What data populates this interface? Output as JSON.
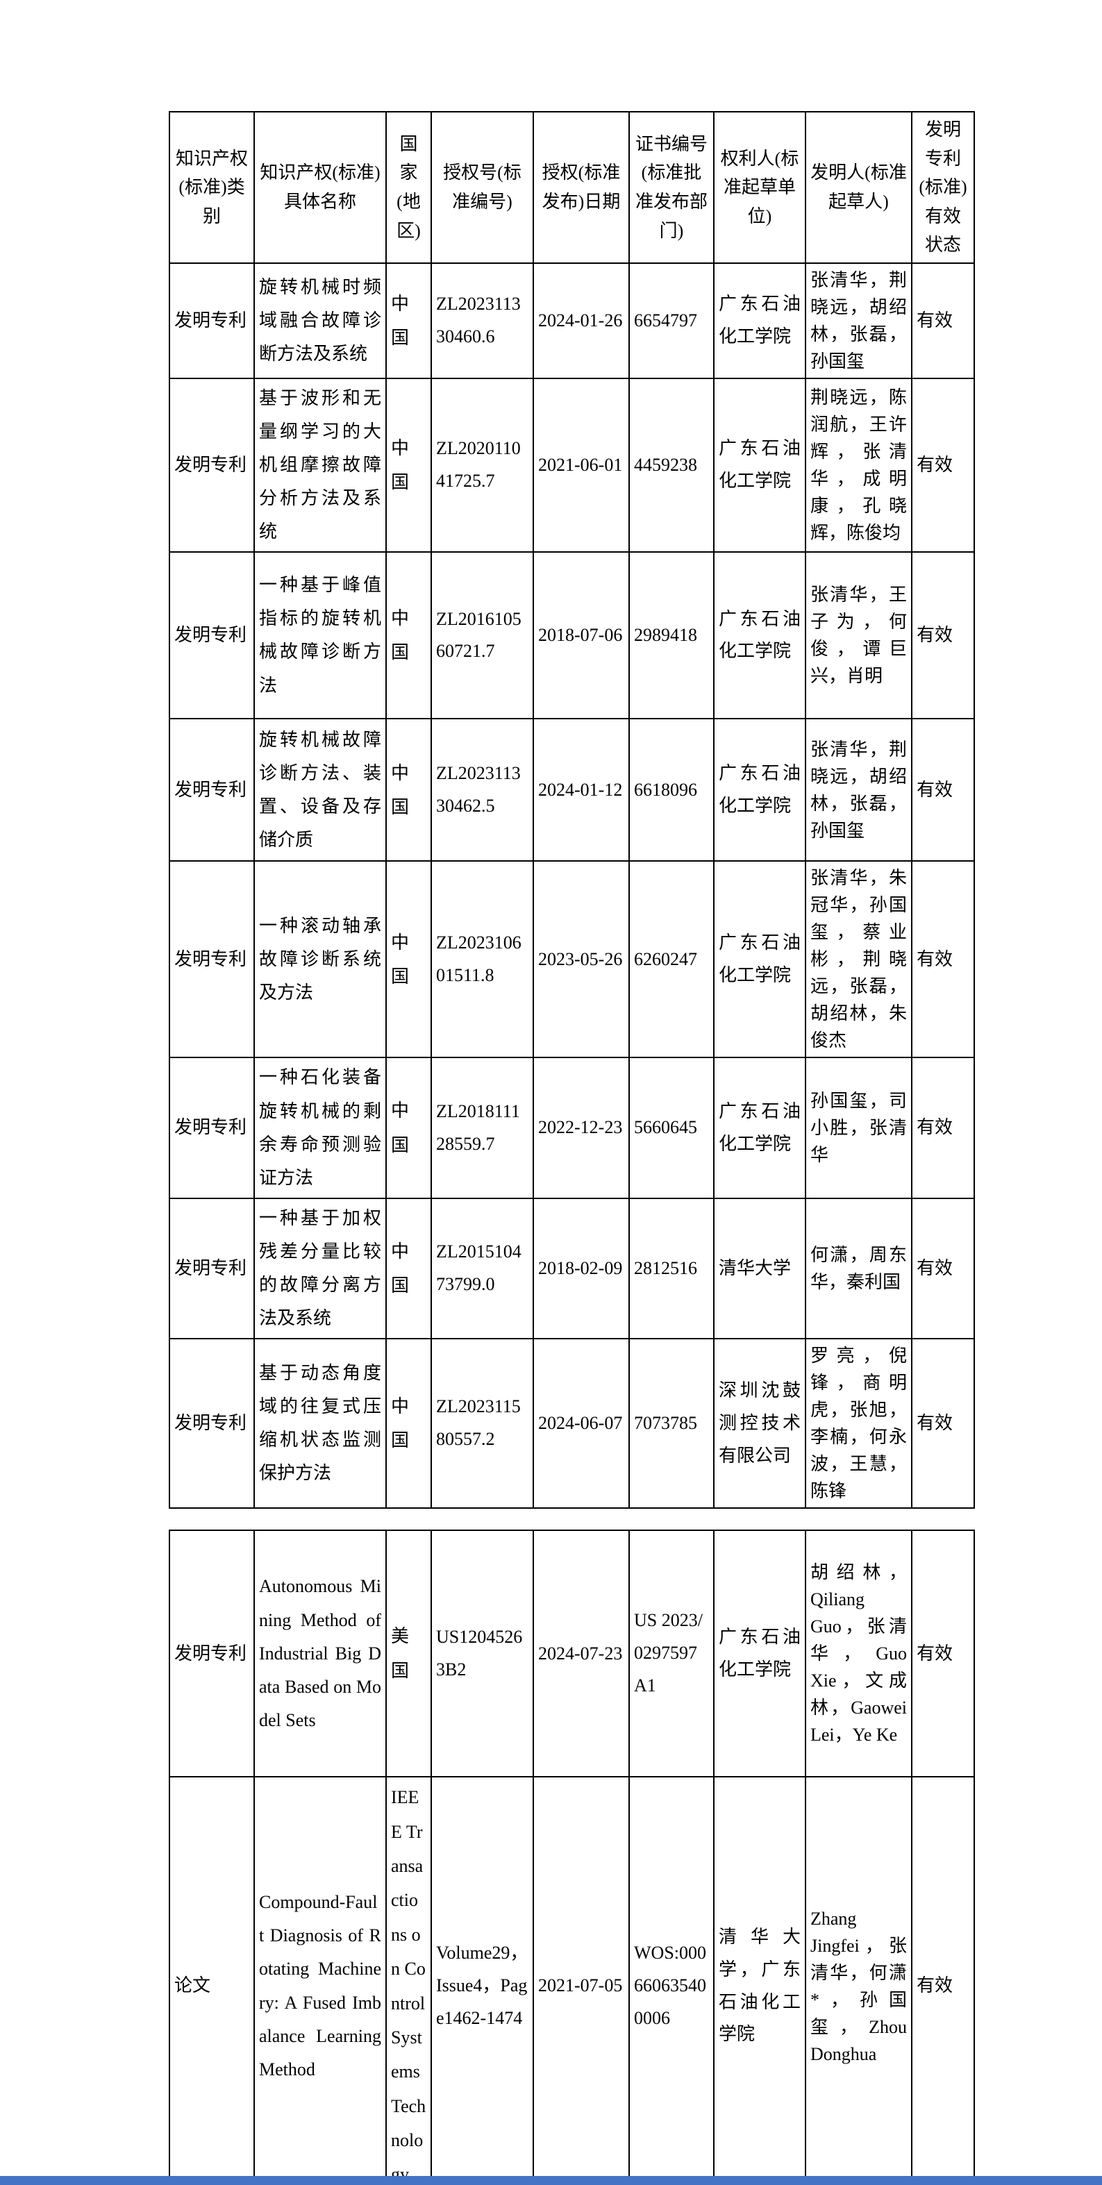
{
  "page": {
    "background": "#ffffff",
    "bottom_bar_color": "#4472c4"
  },
  "table1": {
    "headers": [
      "知识产权(标准)类别",
      "知识产权(标准)具体名称",
      "国家(地区)",
      "授权号(标准编号)",
      "授权(标准发布)日期",
      "证书编号(标准批准发布部门)",
      "权利人(标准起草单位)",
      "发明人(标准起草人)",
      "发明专利(标准)有效状态"
    ],
    "rows": [
      [
        "发明专利",
        "旋转机械时频域融合故障诊断方法及系统",
        "中国",
        "ZL202311330460.6",
        "2024-01-26",
        "6654797",
        "广东石油化工学院",
        "张清华，荆晓远，胡绍林，张磊，孙国玺",
        "有效"
      ],
      [
        "发明专利",
        "基于波形和无量纲学习的大机组摩擦故障分析方法及系统",
        "中国",
        "ZL202011041725.7",
        "2021-06-01",
        "4459238",
        "广东石油化工学院",
        "荆晓远，陈润航，王许辉，张清华，成明康，孔晓辉，陈俊均",
        "有效"
      ],
      [
        "发明专利",
        "一种基于峰值指标的旋转机械故障诊断方法",
        "中国",
        "ZL201610560721.7",
        "2018-07-06",
        "2989418",
        "广东石油化工学院",
        "张清华，王子为，何俊，谭巨兴，肖明",
        "有效"
      ],
      [
        "发明专利",
        "旋转机械故障诊断方法、装置、设备及存储介质",
        "中国",
        "ZL202311330462.5",
        "2024-01-12",
        "6618096",
        "广东石油化工学院",
        "张清华，荆晓远，胡绍林，张磊，孙国玺",
        "有效"
      ],
      [
        "发明专利",
        "一种滚动轴承故障诊断系统及方法",
        "中国",
        "ZL202310601511.8",
        "2023-05-26",
        "6260247",
        "广东石油化工学院",
        "张清华，朱冠华，孙国玺，蔡业彬，荆晓远，张磊，胡绍林，朱俊杰",
        "有效"
      ],
      [
        "发明专利",
        "一种石化装备旋转机械的剩余寿命预测验证方法",
        "中国",
        "ZL201811128559.7",
        "2022-12-23",
        "5660645",
        "广东石油化工学院",
        "孙国玺，司小胜，张清华",
        "有效"
      ],
      [
        "发明专利",
        "一种基于加权残差分量比较的故障分离方法及系统",
        "中国",
        "ZL201510473799.0",
        "2018-02-09",
        "2812516",
        "清华大学",
        "何潇，周东华，秦利国",
        "有效"
      ],
      [
        "发明专利",
        "基于动态角度域的往复式压缩机状态监测保护方法",
        "中国",
        "ZL202311580557.2",
        "2024-06-07",
        "7073785",
        "深圳沈鼓测控技术有限公司",
        "罗亮，倪锋，商明虎，张旭，李楠，何永波，王慧，陈锋",
        "有效"
      ]
    ]
  },
  "table2": {
    "rows": [
      [
        "发明专利",
        "Autonomous Mining Method of Industrial Big Data Based on Model Sets",
        "美国",
        "US12045263B2",
        "2024-07-23",
        "US 2023/0297597 A1",
        "广东石油化工学院",
        "胡绍林，Qiliang Guo，张清华，Guo Xie，文成林，Gaowei Lei，Ye Ke",
        "有效"
      ],
      [
        "论文",
        "Compound-Fault Diagnosis of Rotating Machinery: A Fused Imbalance Learning Method",
        "IEEE Transactions on Control Systems Technology",
        "Volume29，Issue4，Page1462-1474",
        "2021-07-05",
        "WOS:000660635400006",
        "清华大学，广东石油化工学院",
        "Zhang Jingfei，张清华，何潇*，孙国玺，Zhou Donghua",
        "有效"
      ]
    ]
  }
}
